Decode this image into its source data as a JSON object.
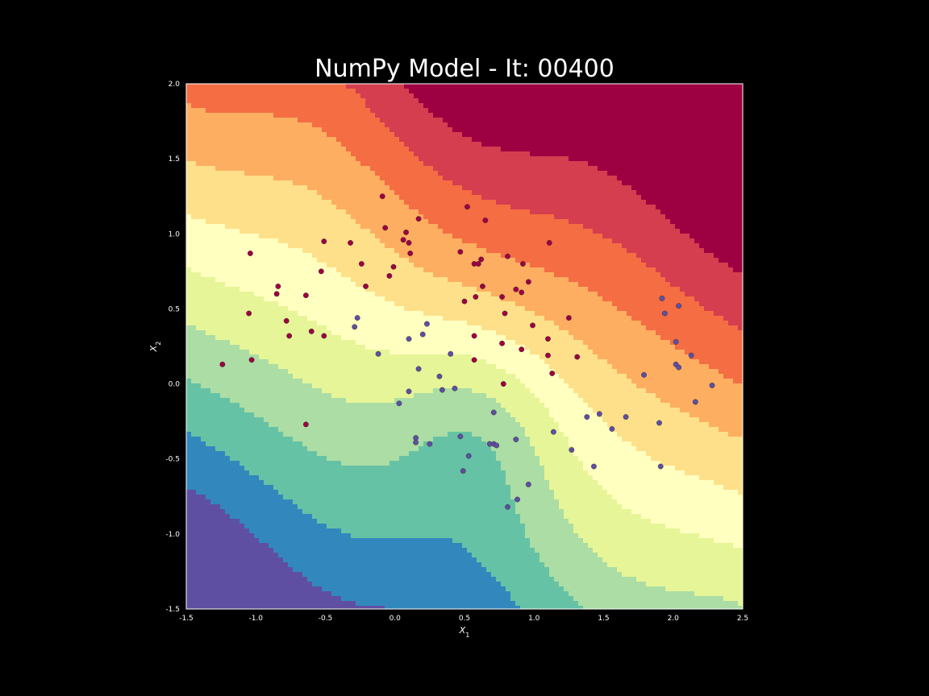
{
  "chart_data": {
    "type": "scatter",
    "title": "NumPy Model - It: 00400",
    "xlabel": "X1",
    "ylabel": "X2",
    "xlim": [
      -1.5,
      2.5
    ],
    "ylim": [
      -1.5,
      2.0
    ],
    "xticks": [
      "-1.5",
      "-1.0",
      "-0.5",
      "0.0",
      "0.5",
      "1.0",
      "1.5",
      "2.0",
      "2.5"
    ],
    "yticks": [
      "-1.5",
      "-1.0",
      "-0.5",
      "0.0",
      "0.5",
      "1.0",
      "1.5",
      "2.0"
    ],
    "grid": false,
    "background": "decision-boundary contour (Spectral colormap)",
    "colors": {
      "class_0": "#9e0142",
      "class_1": "#5e4fa2",
      "axes_bg": "#000000",
      "text": "#ffffff"
    },
    "series": [
      {
        "class": 0,
        "points": [
          [
            -1.24,
            0.13
          ],
          [
            -1.04,
            0.87
          ],
          [
            -1.05,
            0.47
          ],
          [
            -1.03,
            0.16
          ],
          [
            -0.85,
            0.6
          ],
          [
            -0.84,
            0.65
          ],
          [
            -0.78,
            0.42
          ],
          [
            -0.76,
            0.32
          ],
          [
            -0.64,
            0.59
          ],
          [
            -0.6,
            0.35
          ],
          [
            -0.53,
            0.75
          ],
          [
            -0.51,
            0.95
          ],
          [
            -0.51,
            0.32
          ],
          [
            -0.64,
            -0.27
          ],
          [
            -0.32,
            0.94
          ],
          [
            -0.24,
            0.8
          ],
          [
            -0.21,
            0.65
          ],
          [
            -0.09,
            1.25
          ],
          [
            -0.07,
            1.04
          ],
          [
            -0.04,
            0.72
          ],
          [
            -0.01,
            0.78
          ],
          [
            0.06,
            0.96
          ],
          [
            0.08,
            1.01
          ],
          [
            0.1,
            0.94
          ],
          [
            0.11,
            0.87
          ],
          [
            0.17,
            1.1
          ],
          [
            0.47,
            0.88
          ],
          [
            0.5,
            0.55
          ],
          [
            0.52,
            1.18
          ],
          [
            0.57,
            0.8
          ],
          [
            0.58,
            0.58
          ],
          [
            0.6,
            0.8
          ],
          [
            0.62,
            0.83
          ],
          [
            0.63,
            0.65
          ],
          [
            0.65,
            1.09
          ],
          [
            0.77,
            0.58
          ],
          [
            0.79,
            0.47
          ],
          [
            0.81,
            0.85
          ],
          [
            0.87,
            0.63
          ],
          [
            0.91,
            0.61
          ],
          [
            0.92,
            0.8
          ],
          [
            0.96,
            0.68
          ],
          [
            1.11,
            0.94
          ],
          [
            0.99,
            0.39
          ],
          [
            1.1,
            0.3
          ],
          [
            1.1,
            0.19
          ],
          [
            1.13,
            0.07
          ],
          [
            0.91,
            0.23
          ],
          [
            0.77,
            0.27
          ],
          [
            0.57,
            0.32
          ],
          [
            0.57,
            0.16
          ],
          [
            0.78,
            0.0
          ],
          [
            1.25,
            0.44
          ],
          [
            1.31,
            0.18
          ]
        ]
      },
      {
        "class": 1,
        "points": [
          [
            -0.29,
            0.38
          ],
          [
            -0.27,
            0.44
          ],
          [
            -0.12,
            0.2
          ],
          [
            0.03,
            -0.13
          ],
          [
            0.1,
            -0.05
          ],
          [
            0.1,
            0.3
          ],
          [
            0.15,
            -0.36
          ],
          [
            0.15,
            -0.39
          ],
          [
            0.17,
            0.1
          ],
          [
            0.2,
            0.33
          ],
          [
            0.23,
            0.4
          ],
          [
            0.25,
            -0.4
          ],
          [
            0.32,
            0.05
          ],
          [
            0.34,
            -0.04
          ],
          [
            0.4,
            0.2
          ],
          [
            0.43,
            -0.03
          ],
          [
            0.47,
            -0.35
          ],
          [
            0.49,
            -0.58
          ],
          [
            0.53,
            -0.48
          ],
          [
            0.68,
            -0.4
          ],
          [
            0.71,
            -0.19
          ],
          [
            0.71,
            -0.4
          ],
          [
            0.73,
            -0.41
          ],
          [
            0.81,
            -0.82
          ],
          [
            0.87,
            -0.37
          ],
          [
            0.88,
            -0.77
          ],
          [
            0.96,
            -0.67
          ],
          [
            1.14,
            -0.32
          ],
          [
            1.27,
            -0.44
          ],
          [
            1.38,
            -0.22
          ],
          [
            1.43,
            -0.55
          ],
          [
            1.47,
            -0.2
          ],
          [
            1.56,
            -0.3
          ],
          [
            1.66,
            -0.22
          ],
          [
            1.79,
            0.06
          ],
          [
            1.9,
            -0.26
          ],
          [
            1.91,
            -0.55
          ],
          [
            1.92,
            0.57
          ],
          [
            1.94,
            0.47
          ],
          [
            2.02,
            0.28
          ],
          [
            2.02,
            0.13
          ],
          [
            2.04,
            0.52
          ],
          [
            2.04,
            0.11
          ],
          [
            2.13,
            0.19
          ],
          [
            2.16,
            -0.12
          ],
          [
            2.28,
            -0.01
          ]
        ]
      }
    ]
  }
}
